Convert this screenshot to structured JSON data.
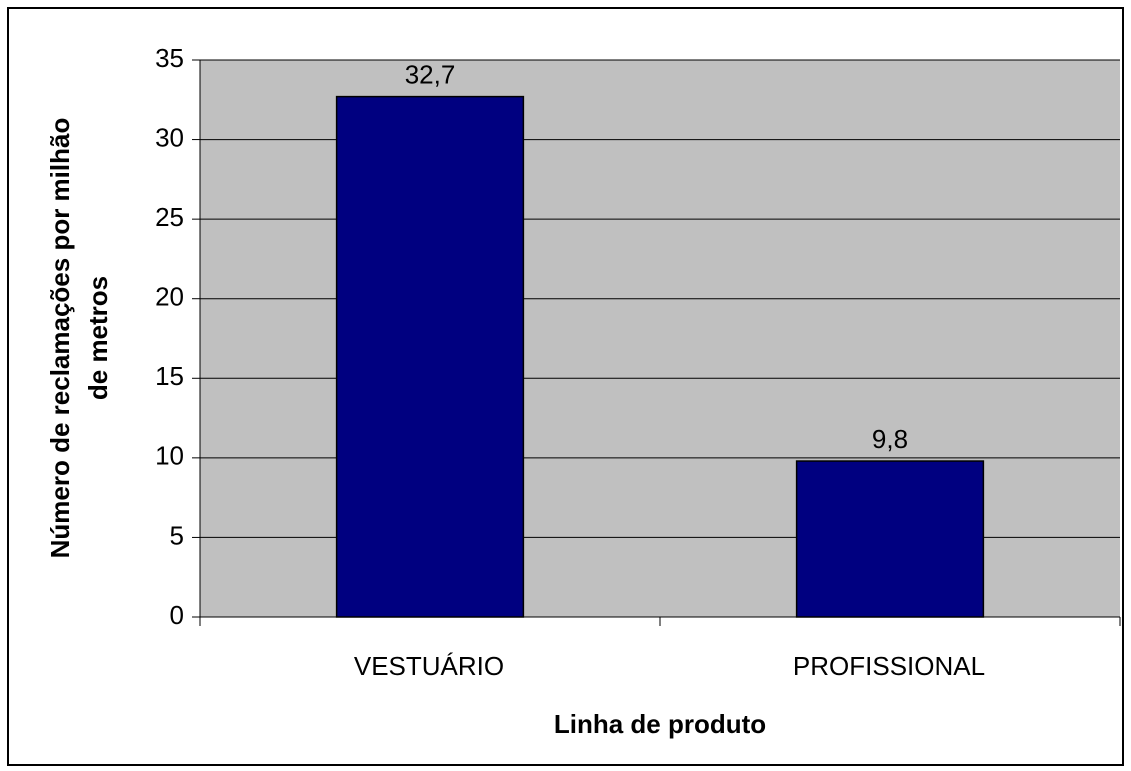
{
  "chart_data": {
    "type": "bar",
    "categories": [
      "VESTUÁRIO",
      "PROFISSIONAL"
    ],
    "values": [
      32.7,
      9.8
    ],
    "value_labels": [
      "32,7",
      "9,8"
    ],
    "color": "#000080",
    "x_label": "Linha de produto",
    "y_label": [
      "Número de reclamações por milhão",
      "de metros"
    ],
    "ylim": [
      0,
      35
    ],
    "yticks": [
      0,
      5,
      10,
      15,
      20,
      25,
      30,
      35
    ],
    "grid": true
  }
}
